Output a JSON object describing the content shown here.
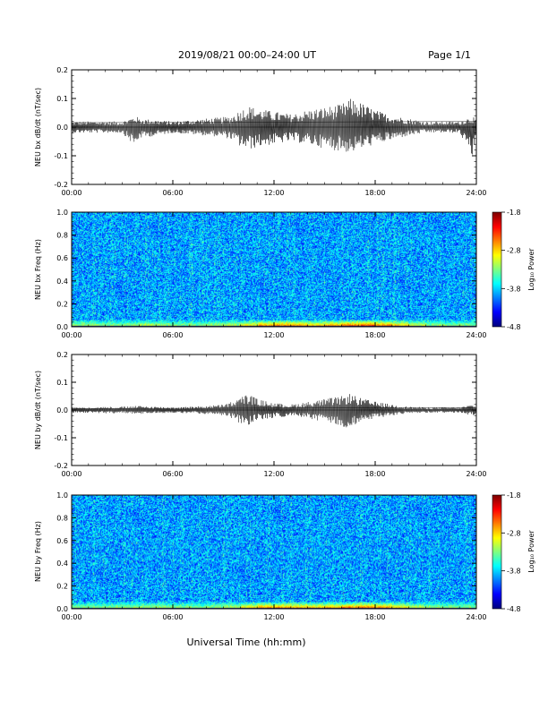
{
  "header": {
    "title": "2019/08/21  00:00–24:00 UT",
    "page": "Page 1/1"
  },
  "xlabel": "Universal Time (hh:mm)",
  "colors": {
    "trace": "#000000",
    "background": "#ffffff"
  },
  "chart_data": [
    {
      "type": "line",
      "ylabel": "NEU bx dB/dt (nT/sec)",
      "x_ticks": [
        "00:00",
        "06:00",
        "12:00",
        "18:00",
        "24:00"
      ],
      "xlim": [
        0,
        24
      ],
      "ylim": [
        -0.2,
        0.2
      ],
      "y_ticks": [
        "0.2",
        "0.1",
        "0.0",
        "-0.1",
        "-0.2"
      ],
      "envelope": {
        "x_hours": [
          0,
          1,
          2,
          3,
          3.8,
          4,
          5,
          6,
          7,
          8,
          9,
          9.5,
          10,
          10.5,
          11,
          12,
          13,
          14,
          15,
          16,
          16.5,
          17,
          18,
          19,
          20,
          21,
          22,
          23,
          23.8,
          24
        ],
        "max": [
          0.02,
          0.02,
          0.02,
          0.02,
          0.04,
          0.03,
          0.025,
          0.02,
          0.025,
          0.03,
          0.035,
          0.04,
          0.06,
          0.075,
          0.065,
          0.055,
          0.045,
          0.06,
          0.07,
          0.08,
          0.1,
          0.09,
          0.06,
          0.04,
          0.03,
          0.02,
          0.02,
          0.02,
          0.04,
          0.02
        ],
        "min": [
          -0.02,
          -0.02,
          -0.02,
          -0.02,
          -0.07,
          -0.04,
          -0.03,
          -0.02,
          -0.025,
          -0.03,
          -0.035,
          -0.045,
          -0.07,
          -0.08,
          -0.07,
          -0.06,
          -0.05,
          -0.06,
          -0.075,
          -0.085,
          -0.09,
          -0.08,
          -0.06,
          -0.045,
          -0.03,
          -0.02,
          -0.02,
          -0.02,
          -0.11,
          -0.02
        ]
      }
    },
    {
      "type": "heatmap",
      "ylabel": "NEU bx Freq (Hz)",
      "x_ticks": [
        "00:00",
        "06:00",
        "12:00",
        "18:00",
        "24:00"
      ],
      "xlim": [
        0,
        24
      ],
      "ylim": [
        0,
        1
      ],
      "y_ticks": [
        "1.0",
        "0.8",
        "0.6",
        "0.4",
        "0.2",
        "0.0"
      ],
      "colorbar": {
        "label": "Log₁₀ Power",
        "ticks": [
          "-1.8",
          "-2.8",
          "-3.8",
          "-4.8"
        ],
        "range": [
          -4.8,
          -1.8
        ]
      },
      "low_freq_power_by_hour": [
        -3.0,
        -3.0,
        -3.1,
        -3.0,
        -2.9,
        -3.0,
        -3.1,
        -3.1,
        -3.0,
        -2.9,
        -2.6,
        -2.3,
        -2.2,
        -2.3,
        -2.5,
        -2.3,
        -2.1,
        -2.0,
        -2.2,
        -2.5,
        -2.8,
        -3.0,
        -3.1,
        -3.1
      ]
    },
    {
      "type": "line",
      "ylabel": "NEU by dB/dt (nT/sec)",
      "x_ticks": [
        "00:00",
        "06:00",
        "12:00",
        "18:00",
        "24:00"
      ],
      "xlim": [
        0,
        24
      ],
      "ylim": [
        -0.2,
        0.2
      ],
      "y_ticks": [
        "0.2",
        "0.1",
        "0.0",
        "-0.1",
        "-0.2"
      ],
      "envelope": {
        "x_hours": [
          0,
          1,
          2,
          3,
          4,
          5,
          6,
          7,
          8,
          9,
          9.5,
          10,
          10.5,
          11,
          12,
          13,
          14,
          15,
          16,
          16.5,
          17,
          18,
          19,
          20,
          21,
          22,
          23,
          23.8,
          24
        ],
        "max": [
          0.01,
          0.01,
          0.012,
          0.012,
          0.015,
          0.012,
          0.01,
          0.012,
          0.015,
          0.02,
          0.03,
          0.045,
          0.06,
          0.04,
          0.025,
          0.02,
          0.03,
          0.04,
          0.05,
          0.06,
          0.045,
          0.03,
          0.02,
          0.012,
          0.01,
          0.01,
          0.01,
          0.02,
          0.01
        ],
        "min": [
          -0.01,
          -0.01,
          -0.012,
          -0.012,
          -0.015,
          -0.012,
          -0.01,
          -0.012,
          -0.015,
          -0.02,
          -0.03,
          -0.05,
          -0.055,
          -0.04,
          -0.03,
          -0.02,
          -0.03,
          -0.045,
          -0.06,
          -0.07,
          -0.05,
          -0.03,
          -0.02,
          -0.012,
          -0.01,
          -0.01,
          -0.01,
          -0.02,
          -0.01
        ]
      }
    },
    {
      "type": "heatmap",
      "ylabel": "NEU by Freq (Hz)",
      "x_ticks": [
        "00:00",
        "06:00",
        "12:00",
        "18:00",
        "24:00"
      ],
      "xlim": [
        0,
        24
      ],
      "ylim": [
        0,
        1
      ],
      "y_ticks": [
        "1.0",
        "0.8",
        "0.6",
        "0.4",
        "0.2",
        "0.0"
      ],
      "colorbar": {
        "label": "Log₁₀ Power",
        "ticks": [
          "-1.8",
          "-2.8",
          "-3.8",
          "-4.8"
        ],
        "range": [
          -4.8,
          -1.8
        ]
      },
      "low_freq_power_by_hour": [
        -3.1,
        -3.1,
        -3.1,
        -3.0,
        -3.0,
        -3.0,
        -3.1,
        -3.1,
        -3.0,
        -2.9,
        -2.6,
        -2.3,
        -2.3,
        -2.4,
        -2.5,
        -2.4,
        -2.2,
        -2.1,
        -2.3,
        -2.6,
        -2.9,
        -3.0,
        -3.1,
        -3.1
      ]
    }
  ]
}
